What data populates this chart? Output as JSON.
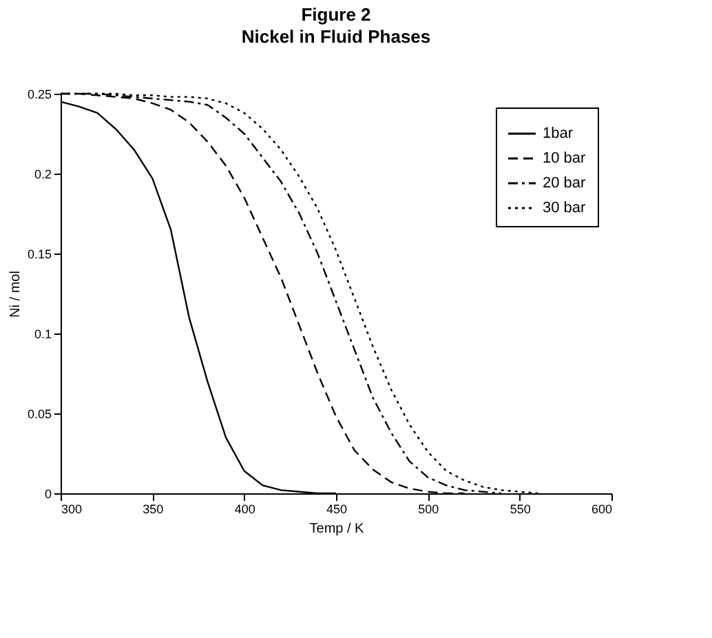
{
  "chart_data": {
    "type": "line",
    "title": "Figure 2",
    "subtitle": "Nickel in Fluid Phases",
    "xlabel": "Temp / K",
    "ylabel": "Ni / mol",
    "xlim": [
      300,
      600
    ],
    "xticks": [
      300,
      350,
      400,
      450,
      500,
      550,
      600
    ],
    "ylim": [
      0,
      0.25
    ],
    "yticks": [
      0,
      0.05,
      0.1,
      0.15,
      0.2,
      0.25
    ],
    "grid": false,
    "legend": "top right",
    "marker": "none",
    "series": [
      {
        "name": "1bar",
        "color": "#000000",
        "line_style": "solid",
        "x": [
          300,
          310,
          320,
          330,
          340,
          350,
          360,
          370,
          380,
          390,
          400,
          410,
          420,
          430,
          440,
          450
        ],
        "values": [
          0.245,
          0.242,
          0.238,
          0.228,
          0.215,
          0.197,
          0.165,
          0.11,
          0.07,
          0.035,
          0.014,
          0.005,
          0.002,
          0.001,
          0,
          0
        ]
      },
      {
        "name": "10 bar",
        "color": "#000000",
        "line_style": "dashed",
        "x": [
          300,
          310,
          320,
          330,
          340,
          350,
          360,
          370,
          380,
          390,
          400,
          410,
          420,
          430,
          440,
          450,
          460,
          470,
          480,
          490,
          500,
          510,
          520
        ],
        "values": [
          0.25,
          0.25,
          0.249,
          0.248,
          0.247,
          0.244,
          0.24,
          0.232,
          0.22,
          0.205,
          0.185,
          0.16,
          0.135,
          0.105,
          0.075,
          0.048,
          0.027,
          0.015,
          0.007,
          0.003,
          0.001,
          0,
          0
        ]
      },
      {
        "name": "20 bar",
        "color": "#000000",
        "line_style": "dashdot",
        "x": [
          300,
          310,
          320,
          330,
          340,
          350,
          360,
          370,
          380,
          390,
          400,
          410,
          420,
          430,
          440,
          450,
          460,
          470,
          480,
          490,
          500,
          510,
          520,
          530,
          540
        ],
        "values": [
          0.25,
          0.25,
          0.25,
          0.249,
          0.248,
          0.247,
          0.246,
          0.245,
          0.243,
          0.235,
          0.225,
          0.21,
          0.195,
          0.175,
          0.15,
          0.12,
          0.09,
          0.06,
          0.038,
          0.02,
          0.01,
          0.005,
          0.002,
          0.001,
          0
        ]
      },
      {
        "name": "30 bar",
        "color": "#000000",
        "line_style": "dotted",
        "x": [
          300,
          310,
          320,
          330,
          340,
          350,
          360,
          370,
          380,
          390,
          400,
          410,
          420,
          430,
          440,
          450,
          460,
          470,
          480,
          490,
          500,
          510,
          520,
          530,
          540,
          550,
          560
        ],
        "values": [
          0.25,
          0.25,
          0.25,
          0.25,
          0.249,
          0.249,
          0.248,
          0.248,
          0.247,
          0.244,
          0.238,
          0.228,
          0.215,
          0.198,
          0.178,
          0.152,
          0.122,
          0.092,
          0.065,
          0.043,
          0.026,
          0.014,
          0.008,
          0.004,
          0.002,
          0.001,
          0
        ]
      }
    ]
  }
}
